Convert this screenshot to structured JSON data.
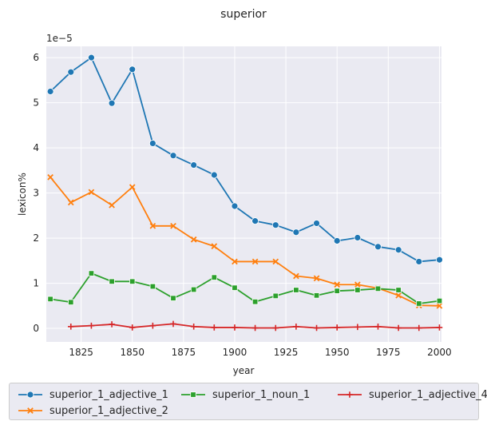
{
  "chart_data": {
    "type": "line",
    "title": "superior",
    "xlabel": "year",
    "ylabel": "lexicon%",
    "y_offset_label": "1e−5",
    "xlim": [
      1808,
      2001
    ],
    "ylim": [
      -0.3,
      6.25
    ],
    "x_ticks": [
      1825,
      1850,
      1875,
      1900,
      1925,
      1950,
      1975,
      2000
    ],
    "y_ticks": [
      0,
      1,
      2,
      3,
      4,
      5,
      6
    ],
    "grid": true,
    "legend_placement": "bottom",
    "series": [
      {
        "name": "superior_1_adjective_1",
        "color": "#1f77b4",
        "marker": "circle",
        "x": [
          1810,
          1820,
          1830,
          1840,
          1850,
          1860,
          1870,
          1880,
          1890,
          1900,
          1910,
          1920,
          1930,
          1940,
          1950,
          1960,
          1970,
          1980,
          1990,
          2000
        ],
        "y": [
          5.25,
          5.68,
          6.0,
          4.99,
          5.74,
          4.1,
          3.83,
          3.62,
          3.4,
          2.71,
          2.38,
          2.29,
          2.13,
          2.33,
          1.94,
          2.01,
          1.81,
          1.74,
          1.48,
          1.52
        ]
      },
      {
        "name": "superior_1_adjective_2",
        "color": "#ff7f0e",
        "marker": "x",
        "x": [
          1810,
          1820,
          1830,
          1840,
          1850,
          1860,
          1870,
          1880,
          1890,
          1900,
          1910,
          1920,
          1930,
          1940,
          1950,
          1960,
          1970,
          1980,
          1990,
          2000
        ],
        "y": [
          3.35,
          2.79,
          3.02,
          2.73,
          3.13,
          2.27,
          2.27,
          1.97,
          1.82,
          1.48,
          1.48,
          1.48,
          1.16,
          1.11,
          0.97,
          0.97,
          0.89,
          0.73,
          0.51,
          0.5
        ]
      },
      {
        "name": "superior_1_noun_1",
        "color": "#2ca02c",
        "marker": "square",
        "x": [
          1810,
          1820,
          1830,
          1840,
          1850,
          1860,
          1870,
          1880,
          1890,
          1900,
          1910,
          1920,
          1930,
          1940,
          1950,
          1960,
          1970,
          1980,
          1990,
          2000
        ],
        "y": [
          0.65,
          0.58,
          1.22,
          1.04,
          1.04,
          0.93,
          0.67,
          0.86,
          1.13,
          0.9,
          0.59,
          0.72,
          0.85,
          0.73,
          0.83,
          0.85,
          0.88,
          0.85,
          0.55,
          0.61
        ]
      },
      {
        "name": "superior_1_adjective_4",
        "color": "#d62728",
        "marker": "plus",
        "x": [
          1820,
          1830,
          1840,
          1850,
          1860,
          1870,
          1880,
          1890,
          1900,
          1910,
          1920,
          1930,
          1940,
          1950,
          1960,
          1970,
          1980,
          1990,
          2000
        ],
        "y": [
          0.04,
          0.06,
          0.09,
          0.02,
          0.06,
          0.1,
          0.04,
          0.02,
          0.02,
          0.01,
          0.01,
          0.04,
          0.01,
          0.02,
          0.03,
          0.04,
          0.01,
          0.01,
          0.02
        ]
      }
    ]
  }
}
